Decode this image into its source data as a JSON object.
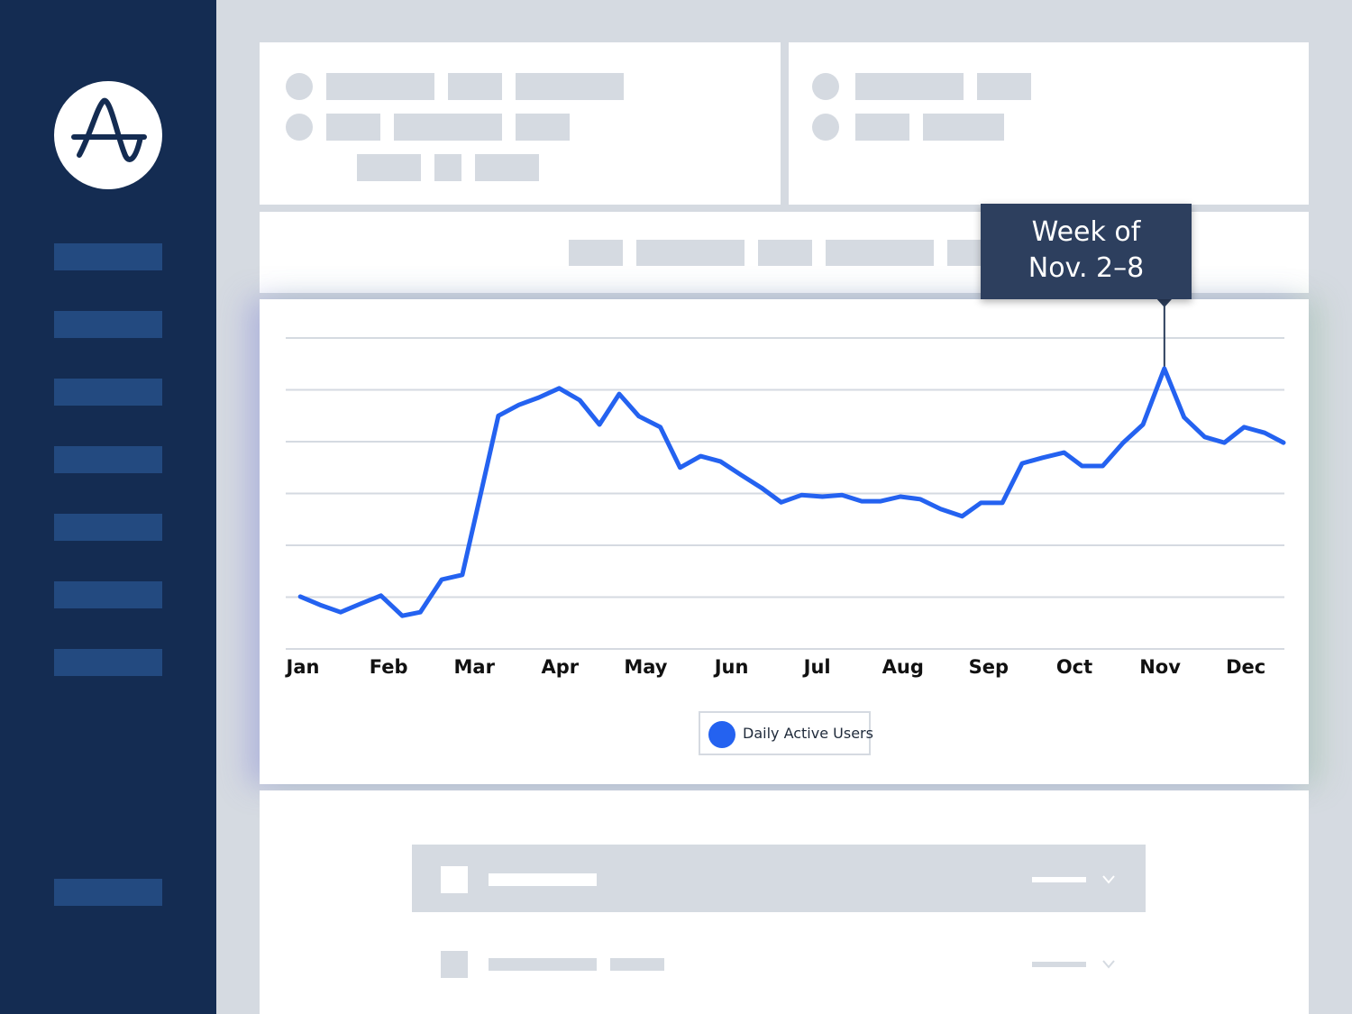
{
  "chart_data": {
    "type": "line",
    "annotation": [
      "Week of",
      "Nov. 2–8"
    ],
    "annotation_index": 43,
    "x": [
      -0.03,
      0.2,
      0.44,
      0.67,
      0.91,
      1.16,
      1.37,
      1.62,
      1.86,
      2.07,
      2.28,
      2.52,
      2.75,
      2.99,
      3.23,
      3.46,
      3.69,
      3.92,
      4.17,
      4.4,
      4.64,
      4.87,
      5.11,
      5.35,
      5.58,
      5.82,
      6.06,
      6.29,
      6.52,
      6.74,
      6.97,
      7.2,
      7.44,
      7.69,
      7.91,
      8.16,
      8.39,
      8.63,
      8.88,
      9.09,
      9.33,
      9.57,
      9.8,
      10.05,
      10.28,
      10.52,
      10.75,
      10.98,
      11.22,
      11.44
    ],
    "series": [
      {
        "name": "Daily Active Users",
        "color": "#2462f0",
        "values": [
          1.01,
          0.85,
          0.71,
          0.87,
          1.03,
          0.64,
          0.71,
          1.34,
          1.43,
          2.96,
          4.5,
          4.71,
          4.85,
          5.03,
          4.8,
          4.33,
          4.92,
          4.49,
          4.28,
          3.5,
          3.72,
          3.62,
          3.36,
          3.11,
          2.83,
          2.97,
          2.94,
          2.97,
          2.85,
          2.85,
          2.94,
          2.89,
          2.7,
          2.56,
          2.82,
          2.82,
          3.58,
          3.69,
          3.79,
          3.53,
          3.53,
          3.98,
          4.33,
          5.41,
          4.47,
          4.09,
          3.98,
          4.28,
          4.17,
          3.98
        ]
      }
    ],
    "xlim": [
      -0.2,
      11.45
    ],
    "xticks": [
      {
        "value": 0,
        "label": "Jan"
      },
      {
        "value": 1,
        "label": "Feb"
      },
      {
        "value": 2,
        "label": "Mar"
      },
      {
        "value": 3,
        "label": "Apr"
      },
      {
        "value": 4,
        "label": "May"
      },
      {
        "value": 5,
        "label": "Jun"
      },
      {
        "value": 6,
        "label": "Jul"
      },
      {
        "value": 7,
        "label": "Aug"
      },
      {
        "value": 8,
        "label": "Sep"
      },
      {
        "value": 9,
        "label": "Oct"
      },
      {
        "value": 10,
        "label": "Nov"
      },
      {
        "value": 11,
        "label": "Dec"
      }
    ],
    "ylim": [
      0,
      6
    ],
    "yticks": [
      0,
      1,
      2,
      3,
      4,
      5,
      6
    ],
    "grid": true
  }
}
